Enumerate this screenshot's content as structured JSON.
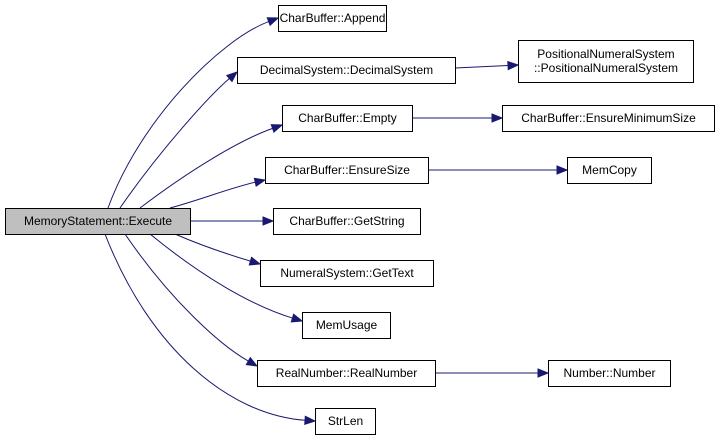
{
  "graph": {
    "edge_color": "#191970",
    "root_fill": "#bfbfbf",
    "nodes": [
      {
        "id": "root",
        "lines": [
          "MemoryStatement::Execute"
        ],
        "root": true
      },
      {
        "id": "append",
        "lines": [
          "CharBuffer::Append"
        ]
      },
      {
        "id": "decimal",
        "lines": [
          "DecimalSystem::DecimalSystem"
        ]
      },
      {
        "id": "positional",
        "lines": [
          "PositionalNumeralSystem",
          "::PositionalNumeralSystem"
        ]
      },
      {
        "id": "empty",
        "lines": [
          "CharBuffer::Empty"
        ]
      },
      {
        "id": "ensuremin",
        "lines": [
          "CharBuffer::EnsureMinimumSize"
        ]
      },
      {
        "id": "ensuresize",
        "lines": [
          "CharBuffer::EnsureSize"
        ]
      },
      {
        "id": "memcopy",
        "lines": [
          "MemCopy"
        ]
      },
      {
        "id": "getstring",
        "lines": [
          "CharBuffer::GetString"
        ]
      },
      {
        "id": "gettext",
        "lines": [
          "NumeralSystem::GetText"
        ]
      },
      {
        "id": "memusage",
        "lines": [
          "MemUsage"
        ]
      },
      {
        "id": "realnumber",
        "lines": [
          "RealNumber::RealNumber"
        ]
      },
      {
        "id": "number",
        "lines": [
          "Number::Number"
        ]
      },
      {
        "id": "strlen",
        "lines": [
          "StrLen"
        ]
      }
    ],
    "edges": [
      {
        "from": "root",
        "to": "append"
      },
      {
        "from": "root",
        "to": "decimal"
      },
      {
        "from": "decimal",
        "to": "positional"
      },
      {
        "from": "root",
        "to": "empty"
      },
      {
        "from": "empty",
        "to": "ensuremin"
      },
      {
        "from": "root",
        "to": "ensuresize"
      },
      {
        "from": "ensuresize",
        "to": "memcopy"
      },
      {
        "from": "root",
        "to": "getstring"
      },
      {
        "from": "root",
        "to": "gettext"
      },
      {
        "from": "root",
        "to": "memusage"
      },
      {
        "from": "root",
        "to": "realnumber"
      },
      {
        "from": "realnumber",
        "to": "number"
      },
      {
        "from": "root",
        "to": "strlen"
      }
    ]
  }
}
